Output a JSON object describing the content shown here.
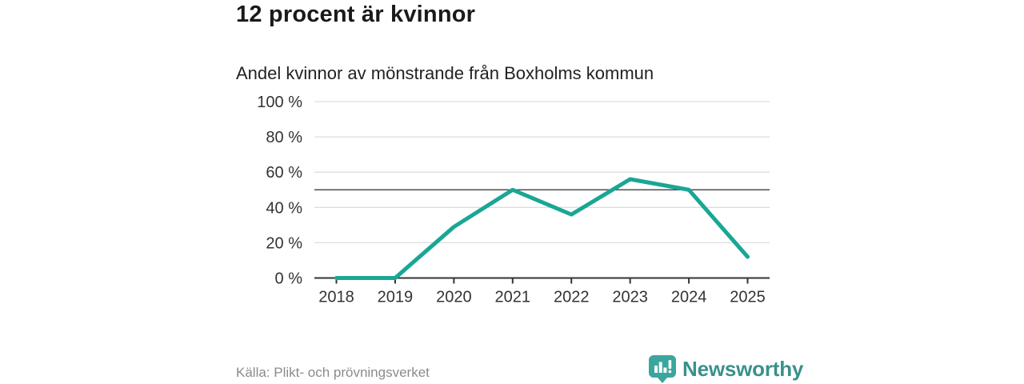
{
  "header": {
    "title": "12 procent är kvinnor",
    "subtitle": "Andel kvinnor av mönstrande från Boxholms kommun"
  },
  "chart_data": {
    "type": "line",
    "x": [
      "2018",
      "2019",
      "2020",
      "2021",
      "2022",
      "2023",
      "2024",
      "2025"
    ],
    "values": [
      0,
      0,
      29,
      50,
      36,
      56,
      50,
      12
    ],
    "series_name": "Andel kvinnor av mönstrande",
    "title": "12 procent är kvinnor",
    "subtitle": "Andel kvinnor av mönstrande från Boxholms kommun",
    "xlabel": "",
    "ylabel": "",
    "ylim": [
      0,
      100
    ],
    "yticks": [
      0,
      20,
      40,
      60,
      80,
      100
    ],
    "ytick_suffix": " %",
    "reference_line": {
      "value": 50,
      "color": "#4d4d4d"
    },
    "grid": true,
    "legend": false,
    "line_color": "#1aa695",
    "gridline_color": "#dddddd",
    "axis_color": "#333333",
    "tick_label_color": "#333333"
  },
  "footer": {
    "source": "Källa: Plikt- och prövningsverket",
    "brand_name": "Newsworthy",
    "brand_color": "#39918b",
    "brand_icon": "bar-chart-speech-bubble-icon",
    "brand_icon_color": "#3ba69e"
  }
}
